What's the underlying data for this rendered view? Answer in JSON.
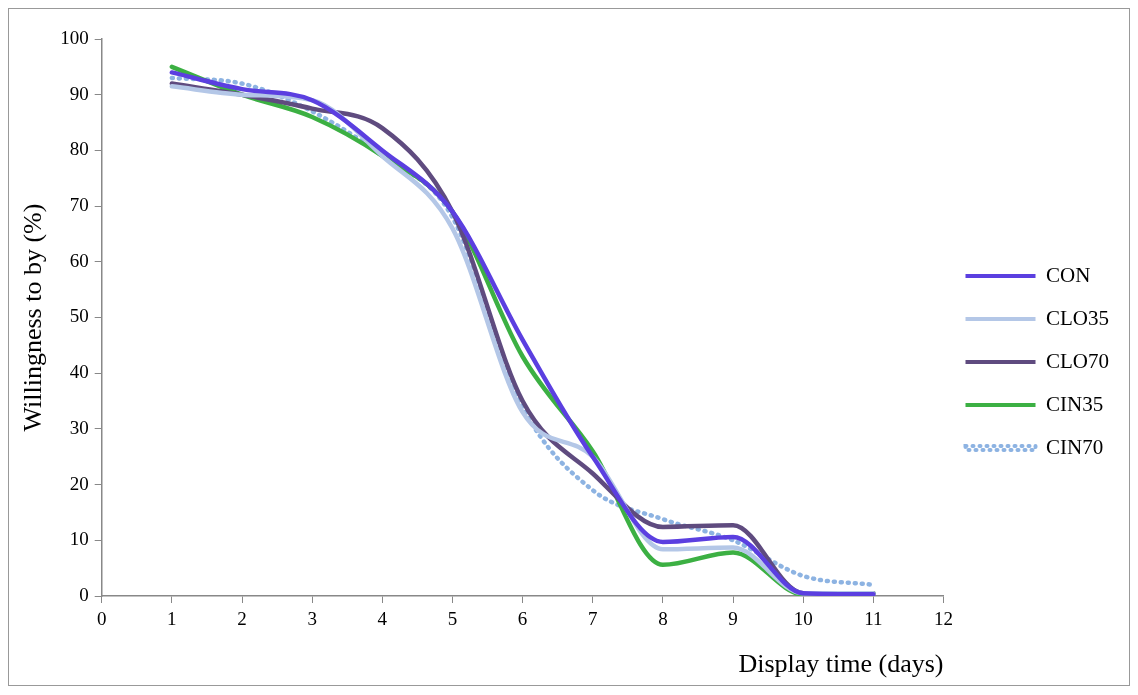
{
  "chart_data": {
    "type": "line",
    "xlabel": "Display time (days)",
    "ylabel": "Willingness to by (%)",
    "x": [
      1,
      2,
      3,
      4,
      5,
      6,
      7,
      8,
      9,
      10,
      11
    ],
    "xlim": [
      0,
      12
    ],
    "xticks": [
      0,
      1,
      2,
      3,
      4,
      5,
      6,
      7,
      8,
      9,
      10,
      11,
      12
    ],
    "ylim": [
      0,
      100
    ],
    "yticks": [
      0,
      10,
      20,
      30,
      40,
      50,
      60,
      70,
      80,
      90,
      100
    ],
    "grid": false,
    "legend": "right",
    "marker": "none",
    "series": [
      {
        "name": "CON",
        "color": "#5b3fe0",
        "line_style": "solid",
        "values": [
          94,
          91,
          89,
          80,
          69,
          46,
          25,
          9.7,
          10.6,
          0.5,
          0.3
        ]
      },
      {
        "name": "CLO35",
        "color": "#b4c7e7",
        "line_style": "solid",
        "values": [
          91.5,
          90,
          89,
          79,
          66,
          33,
          25,
          8.4,
          8.7,
          0.5,
          0.5
        ]
      },
      {
        "name": "CLO70",
        "color": "#5f4b7f",
        "line_style": "solid",
        "values": [
          92,
          90,
          87.5,
          84,
          69,
          35,
          22,
          12.4,
          12.7,
          0.5,
          0.5
        ]
      },
      {
        "name": "CIN35",
        "color": "#3cb043",
        "line_style": "solid",
        "values": [
          95,
          90,
          86,
          79,
          69,
          43,
          26,
          5.6,
          7.8,
          0.3,
          0.5
        ]
      },
      {
        "name": "CIN70",
        "color": "#8db3e2",
        "line_style": "dotted",
        "values": [
          93,
          92,
          87,
          79,
          68,
          34,
          19,
          13.8,
          10,
          3.6,
          2
        ]
      }
    ]
  }
}
